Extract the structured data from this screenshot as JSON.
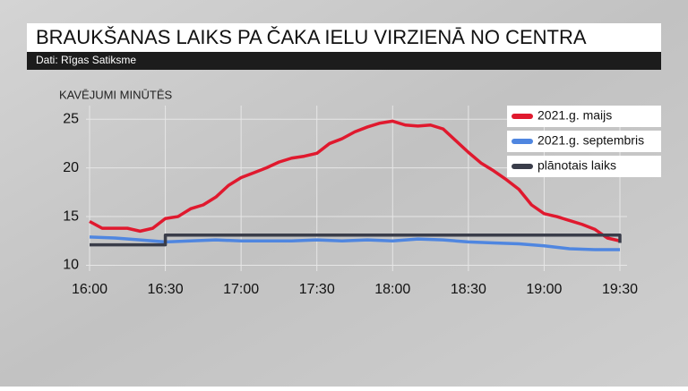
{
  "chart_data": {
    "type": "line",
    "title": "BRAUKŠANAS LAIKS PA ČAKA IELU VIRZIENĀ NO CENTRA",
    "subtitle": "Dati: Rīgas Satiksme",
    "y_label": "KAVĒJUMI MINŪTĒS",
    "xlim": [
      0,
      210
    ],
    "xticks": [
      {
        "value": 0,
        "label": "16:00"
      },
      {
        "value": 30,
        "label": "16:30"
      },
      {
        "value": 60,
        "label": "17:00"
      },
      {
        "value": 90,
        "label": "17:30"
      },
      {
        "value": 120,
        "label": "18:00"
      },
      {
        "value": 150,
        "label": "18:30"
      },
      {
        "value": 180,
        "label": "19:00"
      },
      {
        "value": 210,
        "label": "19:30"
      }
    ],
    "ylim": [
      9.4,
      26.4
    ],
    "yticks": [
      10,
      15,
      20,
      25
    ],
    "grid": true,
    "legend": "top-right",
    "series": [
      {
        "name": "2021.g. maijs",
        "color": "#e0192e",
        "x": [
          0,
          5,
          10,
          15,
          20,
          25,
          30,
          35,
          40,
          45,
          50,
          55,
          60,
          65,
          70,
          75,
          80,
          85,
          90,
          95,
          100,
          105,
          110,
          115,
          120,
          125,
          130,
          135,
          140,
          145,
          150,
          155,
          160,
          165,
          170,
          175,
          180,
          185,
          190,
          195,
          200,
          205,
          210
        ],
        "values": [
          14.5,
          13.8,
          13.8,
          13.8,
          13.5,
          13.8,
          14.8,
          15.0,
          15.8,
          16.2,
          17.0,
          18.2,
          19.0,
          19.5,
          20.0,
          20.6,
          21.0,
          21.2,
          21.5,
          22.5,
          23.0,
          23.7,
          24.2,
          24.6,
          24.8,
          24.4,
          24.3,
          24.4,
          24.0,
          22.8,
          21.6,
          20.5,
          19.7,
          18.8,
          17.8,
          16.2,
          15.3,
          15.0,
          14.6,
          14.2,
          13.7,
          12.8,
          12.5
        ]
      },
      {
        "name": "2021.g. septembris",
        "color": "#4f86e0",
        "x": [
          0,
          10,
          20,
          30,
          40,
          50,
          60,
          70,
          80,
          90,
          100,
          110,
          120,
          130,
          140,
          150,
          160,
          170,
          180,
          190,
          200,
          210
        ],
        "values": [
          12.9,
          12.8,
          12.6,
          12.4,
          12.5,
          12.6,
          12.5,
          12.5,
          12.5,
          12.6,
          12.5,
          12.6,
          12.5,
          12.7,
          12.6,
          12.4,
          12.3,
          12.2,
          12.0,
          11.7,
          11.6,
          11.6
        ]
      },
      {
        "name": "plānotais laiks",
        "color": "#3a3d4a",
        "x": [
          0,
          30,
          30,
          210,
          210
        ],
        "values": [
          12.1,
          12.1,
          13.1,
          13.1,
          12.3
        ]
      }
    ]
  }
}
